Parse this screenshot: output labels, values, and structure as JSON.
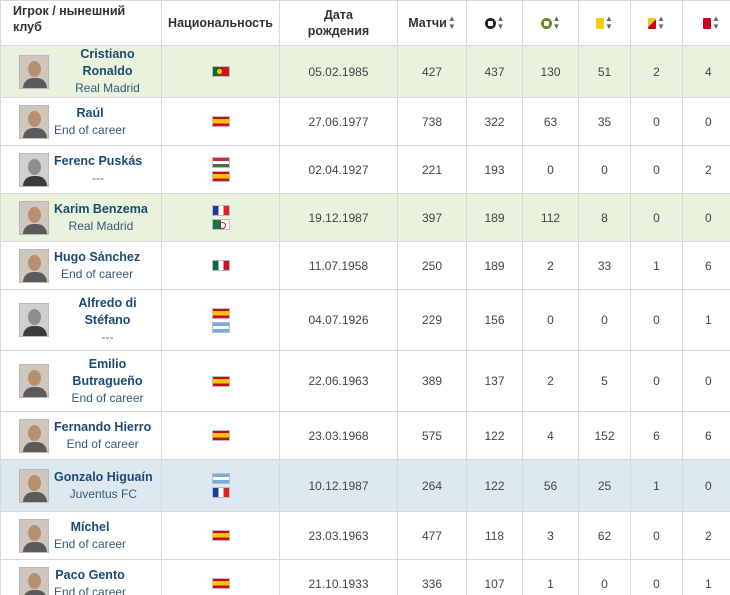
{
  "header": {
    "player": "Игрок / нынешний клуб",
    "nationality": "Национальность",
    "dob": "Дата рождения",
    "matches": "Матчи",
    "goals_icon": "ball-icon",
    "assists_icon": "assist-ball-icon",
    "yellow_icon": "yellow-card-icon",
    "yellow_red_icon": "yellow-red-card-icon",
    "red_icon": "red-card-icon",
    "sort_icon": "sort-arrows-icon",
    "sort_up": "▲",
    "sort_down": "▼"
  },
  "rows": [
    {
      "name": "Cristiano Ronaldo",
      "club": "Real Madrid",
      "flags": [
        "portugal"
      ],
      "dob": "05.02.1985",
      "matches": "427",
      "goals": "437",
      "assists": "130",
      "yellow": "51",
      "yellow_red": "2",
      "red": "4",
      "highlight": "green"
    },
    {
      "name": "Raúl",
      "club": "End of career",
      "flags": [
        "spain"
      ],
      "dob": "27.06.1977",
      "matches": "738",
      "goals": "322",
      "assists": "63",
      "yellow": "35",
      "yellow_red": "0",
      "red": "0",
      "highlight": ""
    },
    {
      "name": "Ferenc Puskás",
      "club": "---",
      "flags": [
        "hungary",
        "spain"
      ],
      "dob": "02.04.1927",
      "matches": "221",
      "goals": "193",
      "assists": "0",
      "yellow": "0",
      "yellow_red": "0",
      "red": "2",
      "highlight": ""
    },
    {
      "name": "Karim Benzema",
      "club": "Real Madrid",
      "flags": [
        "france",
        "algeria"
      ],
      "dob": "19.12.1987",
      "matches": "397",
      "goals": "189",
      "assists": "112",
      "yellow": "8",
      "yellow_red": "0",
      "red": "0",
      "highlight": "green"
    },
    {
      "name": "Hugo Sánchez",
      "club": "End of career",
      "flags": [
        "mexico"
      ],
      "dob": "11.07.1958",
      "matches": "250",
      "goals": "189",
      "assists": "2",
      "yellow": "33",
      "yellow_red": "1",
      "red": "6",
      "highlight": ""
    },
    {
      "name": "Alfredo di Stéfano",
      "club": "---",
      "flags": [
        "spain",
        "argentina"
      ],
      "dob": "04.07.1926",
      "matches": "229",
      "goals": "156",
      "assists": "0",
      "yellow": "0",
      "yellow_red": "0",
      "red": "1",
      "highlight": ""
    },
    {
      "name": "Emilio Butragueño",
      "club": "End of career",
      "flags": [
        "spain"
      ],
      "dob": "22.06.1963",
      "matches": "389",
      "goals": "137",
      "assists": "2",
      "yellow": "5",
      "yellow_red": "0",
      "red": "0",
      "highlight": ""
    },
    {
      "name": "Fernando Hierro",
      "club": "End of career",
      "flags": [
        "spain"
      ],
      "dob": "23.03.1968",
      "matches": "575",
      "goals": "122",
      "assists": "4",
      "yellow": "152",
      "yellow_red": "6",
      "red": "6",
      "highlight": ""
    },
    {
      "name": "Gonzalo Higuaín",
      "club": "Juventus FC",
      "flags": [
        "argentina",
        "france"
      ],
      "dob": "10.12.1987",
      "matches": "264",
      "goals": "122",
      "assists": "56",
      "yellow": "25",
      "yellow_red": "1",
      "red": "0",
      "highlight": "blue"
    },
    {
      "name": "Míchel",
      "club": "End of career",
      "flags": [
        "spain"
      ],
      "dob": "23.03.1963",
      "matches": "477",
      "goals": "118",
      "assists": "3",
      "yellow": "62",
      "yellow_red": "0",
      "red": "2",
      "highlight": ""
    },
    {
      "name": "Paco Gento",
      "club": "End of career",
      "flags": [
        "spain"
      ],
      "dob": "21.10.1933",
      "matches": "336",
      "goals": "107",
      "assists": "1",
      "yellow": "0",
      "yellow_red": "0",
      "red": "1",
      "highlight": ""
    }
  ]
}
